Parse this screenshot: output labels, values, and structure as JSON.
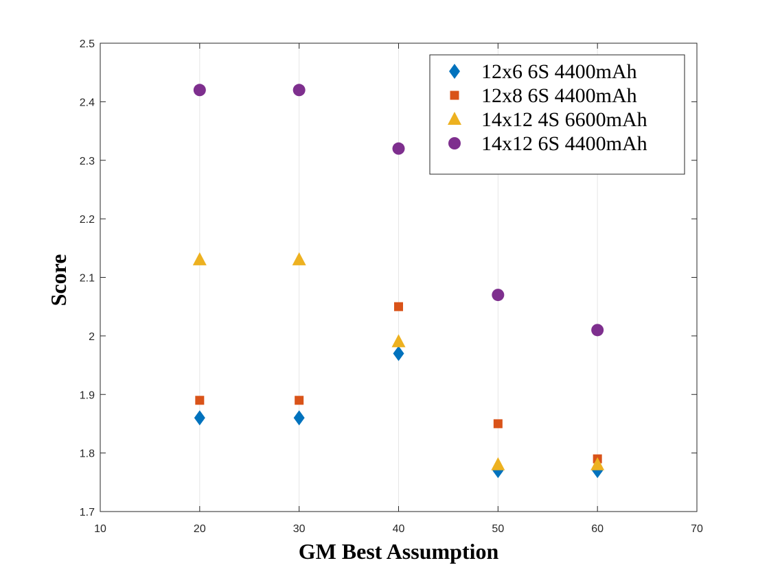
{
  "chart_data": {
    "type": "scatter",
    "xlabel": "GM Best Assumption",
    "ylabel": "Score",
    "xlim": [
      10,
      70
    ],
    "ylim": [
      1.7,
      2.5
    ],
    "xticks": [
      "10",
      "20",
      "30",
      "40",
      "50",
      "60",
      "70"
    ],
    "yticks": [
      "1.7",
      "1.8",
      "1.9",
      "2",
      "2.1",
      "2.2",
      "2.3",
      "2.4",
      "2.5"
    ],
    "grid": "vertical",
    "legend_position": "top-right",
    "series": [
      {
        "name": "12x6 6S 4400mAh",
        "marker": "diamond",
        "color": "#0072BD",
        "x": [
          20,
          30,
          40,
          50,
          60
        ],
        "y": [
          1.86,
          1.86,
          1.97,
          1.77,
          1.77
        ]
      },
      {
        "name": "12x8 6S 4400mAh",
        "marker": "square",
        "color": "#D95319",
        "x": [
          20,
          30,
          40,
          50,
          60
        ],
        "y": [
          1.89,
          1.89,
          2.05,
          1.85,
          1.79
        ]
      },
      {
        "name": "14x12 4S 6600mAh",
        "marker": "triangle",
        "color": "#EDB120",
        "x": [
          20,
          30,
          40,
          50,
          60
        ],
        "y": [
          2.13,
          2.13,
          1.99,
          1.78,
          1.78
        ]
      },
      {
        "name": "14x12 6S 4400mAh",
        "marker": "circle",
        "color": "#7E2F8E",
        "x": [
          20,
          30,
          40,
          50,
          60
        ],
        "y": [
          2.42,
          2.42,
          2.32,
          2.07,
          2.01
        ]
      }
    ]
  }
}
